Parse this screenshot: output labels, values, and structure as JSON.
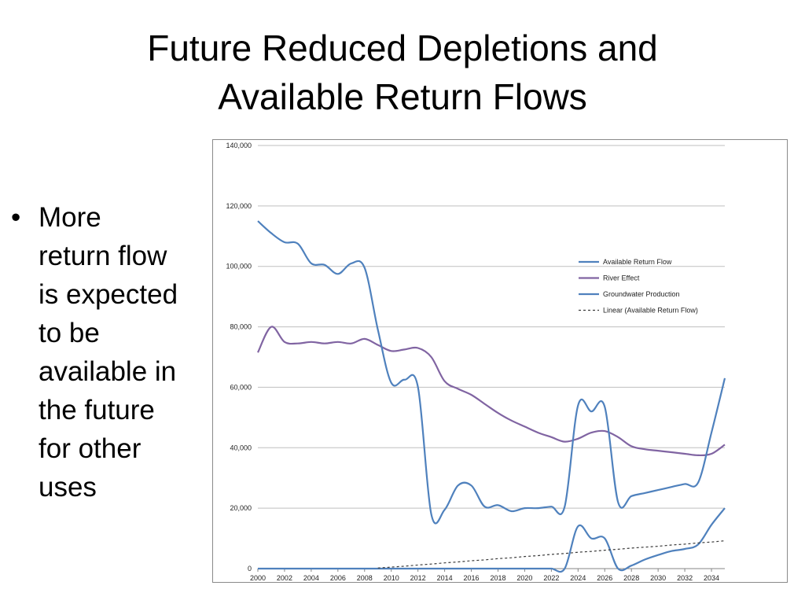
{
  "slide": {
    "title_lines": [
      "Future Reduced Depletions and",
      "Available Return Flows"
    ],
    "bullets": [
      {
        "lines": [
          "More",
          "return flow",
          "is expected",
          "to be",
          "available in",
          "the future",
          "for other",
          "uses"
        ]
      }
    ],
    "bullet_glyph": "•"
  },
  "chart_data": {
    "type": "line",
    "title": "",
    "xlabel": "",
    "ylabel": "",
    "xlim": [
      2000,
      2035
    ],
    "ylim": [
      0,
      140000
    ],
    "grid": true,
    "legend_position": "right",
    "x_ticks": [
      2000,
      2002,
      2004,
      2006,
      2008,
      2010,
      2012,
      2014,
      2016,
      2018,
      2020,
      2022,
      2024,
      2026,
      2028,
      2030,
      2032,
      2034
    ],
    "x_tick_labels": [
      "2000",
      "2002",
      "2004",
      "2006",
      "2008",
      "2010",
      "2012",
      "2014",
      "2016",
      "2018",
      "2020",
      "2022",
      "2024",
      "2026",
      "2028",
      "2030",
      "2032",
      "2034"
    ],
    "y_ticks": [
      0,
      20000,
      40000,
      60000,
      80000,
      100000,
      120000,
      140000
    ],
    "y_tick_labels": [
      "0",
      "20,000",
      "40,000",
      "60,000",
      "80,000",
      "100,000",
      "120,000",
      "140,000"
    ],
    "x": [
      2000,
      2001,
      2002,
      2003,
      2004,
      2005,
      2006,
      2007,
      2008,
      2009,
      2010,
      2011,
      2012,
      2013,
      2014,
      2015,
      2016,
      2017,
      2018,
      2019,
      2020,
      2021,
      2022,
      2023,
      2024,
      2025,
      2026,
      2027,
      2028,
      2029,
      2030,
      2031,
      2032,
      2033,
      2034,
      2035
    ],
    "series": [
      {
        "name": "Available Return Flow",
        "color": "#4f81bd",
        "style": "solid",
        "values": [
          0,
          0,
          0,
          0,
          0,
          0,
          0,
          0,
          0,
          0,
          0,
          0,
          0,
          0,
          0,
          0,
          0,
          0,
          0,
          0,
          0,
          0,
          0,
          0,
          14000,
          10000,
          10000,
          0,
          1000,
          3000,
          4500,
          5800,
          6500,
          8000,
          14500,
          20000
        ]
      },
      {
        "name": "River Effect",
        "color": "#8064a2",
        "style": "solid",
        "values": [
          71500,
          80000,
          75000,
          74500,
          75000,
          74500,
          75000,
          74500,
          76000,
          74000,
          72000,
          72500,
          73000,
          70000,
          62000,
          59500,
          57500,
          54500,
          51500,
          49000,
          47000,
          45000,
          43500,
          42000,
          43000,
          45000,
          45500,
          43500,
          40500,
          39500,
          39000,
          38500,
          38000,
          37500,
          38000,
          41000
        ]
      },
      {
        "name": "Groundwater Production",
        "color": "#4f81bd",
        "style": "solid",
        "values": [
          115000,
          111000,
          108000,
          107500,
          101000,
          100500,
          97500,
          101000,
          99500,
          79000,
          61500,
          62500,
          60000,
          18000,
          19500,
          27500,
          27500,
          20500,
          21000,
          19000,
          20000,
          20000,
          20500,
          20500,
          54000,
          52000,
          53500,
          22000,
          24000,
          25000,
          26000,
          27000,
          28000,
          28500,
          45000,
          63000
        ]
      },
      {
        "name": "Linear (Available Return Flow)",
        "color": "#3b3b3b",
        "style": "dashed",
        "values": [
          -3000,
          -2600,
          -2300,
          -1900,
          -1600,
          -1200,
          -900,
          -500,
          -200,
          200,
          500,
          800,
          1200,
          1500,
          1900,
          2200,
          2600,
          2900,
          3300,
          3600,
          4000,
          4300,
          4700,
          5000,
          5400,
          5700,
          6100,
          6400,
          6800,
          7100,
          7400,
          7800,
          8100,
          8500,
          8800,
          9200
        ]
      }
    ]
  }
}
